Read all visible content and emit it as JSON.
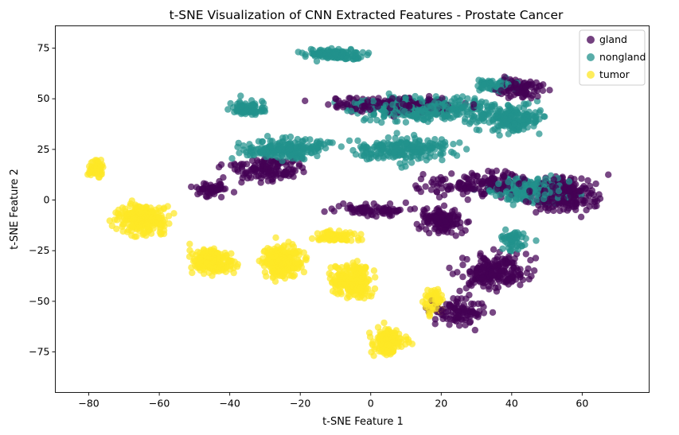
{
  "chart_data": {
    "type": "scatter",
    "title": "t-SNE Visualization of CNN Extracted Features - Prostate Cancer",
    "xlabel": "t-SNE Feature 1",
    "ylabel": "t-SNE Feature 2",
    "xlim": [
      -89.5,
      79
    ],
    "ylim": [
      -95,
      86
    ],
    "x_ticks": [
      -80,
      -60,
      -40,
      -20,
      0,
      20,
      40,
      60
    ],
    "y_ticks": [
      -75,
      -50,
      -25,
      0,
      25,
      50,
      75
    ],
    "x_tick_labels": [
      "−80",
      "−60",
      "−40",
      "−20",
      "0",
      "20",
      "40",
      "60"
    ],
    "y_tick_labels": [
      "−75",
      "−50",
      "−25",
      "0",
      "25",
      "50",
      "75"
    ],
    "grid": false,
    "legend_position": "upper-right",
    "legend": [
      "gland",
      "nongland",
      "tumor"
    ],
    "series": [
      {
        "name": "gland",
        "color": "#440154",
        "points_note": "cluster regions in data units",
        "regions": [
          {
            "cx": 55,
            "cy": 2,
            "rx": 16,
            "ry": 14,
            "n": 220
          },
          {
            "cx": 35,
            "cy": -35,
            "rx": 15,
            "ry": 15,
            "n": 200
          },
          {
            "cx": 20,
            "cy": -10,
            "rx": 12,
            "ry": 10,
            "n": 140
          },
          {
            "cx": 42,
            "cy": 55,
            "rx": 12,
            "ry": 8,
            "n": 90
          },
          {
            "cx": 5,
            "cy": 47,
            "rx": 30,
            "ry": 7,
            "n": 160
          },
          {
            "cx": -30,
            "cy": 15,
            "rx": 18,
            "ry": 10,
            "n": 130
          },
          {
            "cx": -45,
            "cy": 5,
            "rx": 8,
            "ry": 6,
            "n": 50
          },
          {
            "cx": 30,
            "cy": 8,
            "rx": 30,
            "ry": 10,
            "n": 160
          },
          {
            "cx": 25,
            "cy": -55,
            "rx": 12,
            "ry": 12,
            "n": 100
          },
          {
            "cx": 0,
            "cy": -5,
            "rx": 18,
            "ry": 6,
            "n": 80
          }
        ]
      },
      {
        "name": "nongland",
        "color": "#21918c",
        "points_note": "cluster regions in data units",
        "regions": [
          {
            "cx": -10,
            "cy": 72,
            "rx": 14,
            "ry": 5,
            "n": 140
          },
          {
            "cx": 15,
            "cy": 45,
            "rx": 35,
            "ry": 10,
            "n": 320
          },
          {
            "cx": -25,
            "cy": 25,
            "rx": 22,
            "ry": 8,
            "n": 200
          },
          {
            "cx": 40,
            "cy": 40,
            "rx": 15,
            "ry": 12,
            "n": 180
          },
          {
            "cx": 45,
            "cy": 5,
            "rx": 20,
            "ry": 10,
            "n": 200
          },
          {
            "cx": 10,
            "cy": 25,
            "rx": 25,
            "ry": 10,
            "n": 200
          },
          {
            "cx": -35,
            "cy": 45,
            "rx": 10,
            "ry": 8,
            "n": 70
          },
          {
            "cx": 40,
            "cy": -20,
            "rx": 8,
            "ry": 10,
            "n": 50
          },
          {
            "cx": 35,
            "cy": 57,
            "rx": 10,
            "ry": 5,
            "n": 60
          }
        ]
      },
      {
        "name": "tumor",
        "color": "#fde725",
        "points_note": "cluster regions in data units",
        "regions": [
          {
            "cx": -78,
            "cy": 15,
            "rx": 4,
            "ry": 8,
            "n": 50
          },
          {
            "cx": -65,
            "cy": -10,
            "rx": 12,
            "ry": 12,
            "n": 260
          },
          {
            "cx": -45,
            "cy": -30,
            "rx": 10,
            "ry": 12,
            "n": 200
          },
          {
            "cx": -25,
            "cy": -30,
            "rx": 10,
            "ry": 15,
            "n": 220
          },
          {
            "cx": -5,
            "cy": -40,
            "rx": 10,
            "ry": 15,
            "n": 200
          },
          {
            "cx": 5,
            "cy": -70,
            "rx": 8,
            "ry": 12,
            "n": 140
          },
          {
            "cx": 18,
            "cy": -50,
            "rx": 5,
            "ry": 10,
            "n": 60
          },
          {
            "cx": -10,
            "cy": -18,
            "rx": 10,
            "ry": 5,
            "n": 80
          }
        ]
      }
    ]
  }
}
